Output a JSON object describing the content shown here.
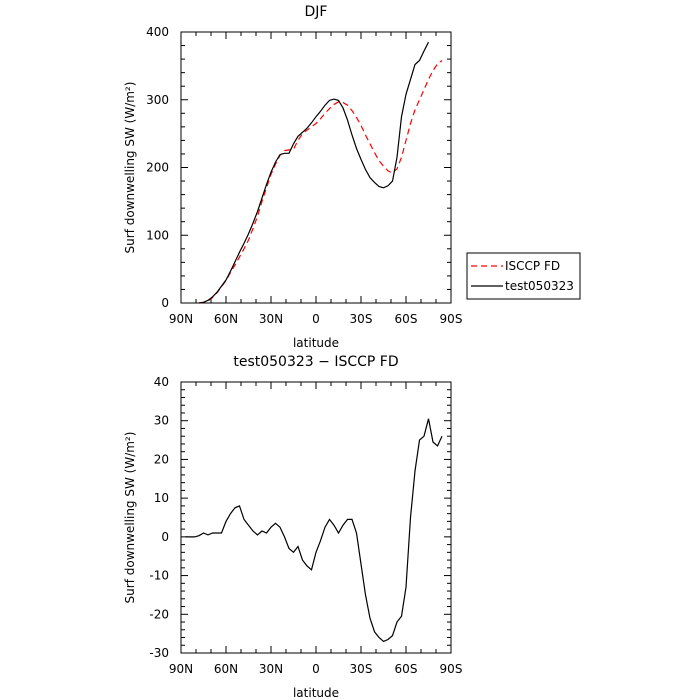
{
  "chart_data": [
    {
      "type": "line",
      "title": "DJF",
      "xlabel": "latitude",
      "ylabel": "Surf downwelling SW (W/m²)",
      "xlim": [
        -90,
        90
      ],
      "ylim": [
        0,
        400
      ],
      "xticks": [
        {
          "value": -90,
          "label": "90N"
        },
        {
          "value": -60,
          "label": "60N"
        },
        {
          "value": -30,
          "label": "30N"
        },
        {
          "value": 0,
          "label": "0"
        },
        {
          "value": 30,
          "label": "30S"
        },
        {
          "value": 60,
          "label": "60S"
        },
        {
          "value": 90,
          "label": "90S"
        }
      ],
      "yticks": [
        0,
        100,
        200,
        300,
        400
      ],
      "legend": {
        "placement": "right-bottom",
        "entries": [
          "ISCCP FD",
          "test050323"
        ]
      },
      "series": [
        {
          "name": "ISCCP FD",
          "color": "#ff0000",
          "dash": "dashed",
          "points": [
            [
              -78,
              0
            ],
            [
              -75,
              1
            ],
            [
              -72,
              3
            ],
            [
              -69,
              8
            ],
            [
              -66,
              15
            ],
            [
              -63,
              24
            ],
            [
              -60,
              33
            ],
            [
              -57,
              45
            ],
            [
              -54,
              56
            ],
            [
              -51,
              68
            ],
            [
              -48,
              80
            ],
            [
              -45,
              93
            ],
            [
              -42,
              110
            ],
            [
              -39,
              128
            ],
            [
              -36,
              150
            ],
            [
              -33,
              170
            ],
            [
              -30,
              190
            ],
            [
              -27,
              205
            ],
            [
              -24,
              218
            ],
            [
              -21,
              225
            ],
            [
              -18,
              226
            ],
            [
              -15,
              227
            ],
            [
              -12,
              240
            ],
            [
              -9,
              250
            ],
            [
              -6,
              255
            ],
            [
              -3,
              260
            ],
            [
              0,
              265
            ],
            [
              3,
              272
            ],
            [
              6,
              280
            ],
            [
              9,
              287
            ],
            [
              12,
              293
            ],
            [
              15,
              297
            ],
            [
              18,
              296
            ],
            [
              21,
              292
            ],
            [
              24,
              284
            ],
            [
              27,
              274
            ],
            [
              30,
              262
            ],
            [
              33,
              248
            ],
            [
              36,
              235
            ],
            [
              39,
              222
            ],
            [
              42,
              210
            ],
            [
              45,
              202
            ],
            [
              48,
              195
            ],
            [
              51,
              192
            ],
            [
              54,
              198
            ],
            [
              57,
              215
            ],
            [
              60,
              240
            ],
            [
              63,
              265
            ],
            [
              66,
              285
            ],
            [
              69,
              300
            ],
            [
              72,
              315
            ],
            [
              75,
              330
            ],
            [
              78,
              343
            ],
            [
              81,
              353
            ],
            [
              84,
              358
            ]
          ]
        },
        {
          "name": "test050323",
          "color": "#000000",
          "dash": "solid",
          "points": [
            [
              -78,
              0
            ],
            [
              -75,
              1
            ],
            [
              -72,
              4
            ],
            [
              -69,
              9
            ],
            [
              -66,
              16
            ],
            [
              -63,
              25
            ],
            [
              -60,
              34
            ],
            [
              -57,
              47
            ],
            [
              -54,
              61
            ],
            [
              -51,
              75
            ],
            [
              -48,
              88
            ],
            [
              -45,
              102
            ],
            [
              -42,
              118
            ],
            [
              -39,
              135
            ],
            [
              -36,
              155
            ],
            [
              -33,
              175
            ],
            [
              -30,
              193
            ],
            [
              -27,
              208
            ],
            [
              -24,
              219
            ],
            [
              -21,
              221
            ],
            [
              -18,
              221
            ],
            [
              -15,
              235
            ],
            [
              -12,
              246
            ],
            [
              -9,
              252
            ],
            [
              -6,
              258
            ],
            [
              -3,
              266
            ],
            [
              0,
              275
            ],
            [
              3,
              283
            ],
            [
              6,
              292
            ],
            [
              9,
              299
            ],
            [
              12,
              301
            ],
            [
              15,
              299
            ],
            [
              18,
              288
            ],
            [
              21,
              270
            ],
            [
              24,
              248
            ],
            [
              27,
              228
            ],
            [
              30,
              212
            ],
            [
              33,
              197
            ],
            [
              36,
              185
            ],
            [
              39,
              178
            ],
            [
              42,
              172
            ],
            [
              45,
              170
            ],
            [
              48,
              173
            ],
            [
              51,
              180
            ],
            [
              54,
              215
            ],
            [
              57,
              275
            ],
            [
              60,
              308
            ],
            [
              63,
              330
            ],
            [
              66,
              352
            ],
            [
              69,
              358
            ],
            [
              72,
              372
            ],
            [
              75,
              385
            ]
          ]
        }
      ]
    },
    {
      "type": "line",
      "title": "test050323 − ISCCP FD",
      "xlabel": "latitude",
      "ylabel": "Surf downwelling SW (W/m²)",
      "xlim": [
        -90,
        90
      ],
      "ylim": [
        -30,
        40
      ],
      "xticks": [
        {
          "value": -90,
          "label": "90N"
        },
        {
          "value": -60,
          "label": "60N"
        },
        {
          "value": -30,
          "label": "30N"
        },
        {
          "value": 0,
          "label": "0"
        },
        {
          "value": 30,
          "label": "30S"
        },
        {
          "value": 60,
          "label": "60S"
        },
        {
          "value": 90,
          "label": "90S"
        }
      ],
      "yticks": [
        -30,
        -20,
        -10,
        0,
        10,
        20,
        30,
        40
      ],
      "series": [
        {
          "name": "",
          "color": "#000000",
          "dash": "solid",
          "points": [
            [
              -87,
              0
            ],
            [
              -81,
              0
            ],
            [
              -78,
              0.3
            ],
            [
              -75,
              1
            ],
            [
              -72,
              0.5
            ],
            [
              -69,
              1
            ],
            [
              -66,
              1
            ],
            [
              -63,
              1
            ],
            [
              -60,
              4
            ],
            [
              -57,
              6
            ],
            [
              -54,
              7.5
            ],
            [
              -51,
              8
            ],
            [
              -48,
              4.5
            ],
            [
              -45,
              3
            ],
            [
              -42,
              1.5
            ],
            [
              -39,
              0.5
            ],
            [
              -36,
              1.5
            ],
            [
              -33,
              1
            ],
            [
              -30,
              2.5
            ],
            [
              -27,
              3.5
            ],
            [
              -24,
              2.5
            ],
            [
              -21,
              0
            ],
            [
              -18,
              -3
            ],
            [
              -15,
              -4
            ],
            [
              -12,
              -2.5
            ],
            [
              -9,
              -6
            ],
            [
              -6,
              -7.5
            ],
            [
              -3,
              -8.5
            ],
            [
              0,
              -4
            ],
            [
              3,
              -1
            ],
            [
              6,
              2.5
            ],
            [
              9,
              4.5
            ],
            [
              12,
              3
            ],
            [
              15,
              1
            ],
            [
              18,
              3
            ],
            [
              21,
              4.5
            ],
            [
              24,
              4.5
            ],
            [
              27,
              1
            ],
            [
              30,
              -7
            ],
            [
              33,
              -15
            ],
            [
              36,
              -21
            ],
            [
              39,
              -24.5
            ],
            [
              42,
              -26
            ],
            [
              45,
              -27
            ],
            [
              48,
              -26.5
            ],
            [
              51,
              -25.5
            ],
            [
              54,
              -22
            ],
            [
              57,
              -20.5
            ],
            [
              60,
              -13
            ],
            [
              63,
              5
            ],
            [
              66,
              17
            ],
            [
              69,
              25
            ],
            [
              72,
              26
            ],
            [
              75,
              30.5
            ],
            [
              78,
              24.5
            ],
            [
              81,
              23.5
            ],
            [
              84,
              26
            ]
          ]
        }
      ]
    }
  ]
}
